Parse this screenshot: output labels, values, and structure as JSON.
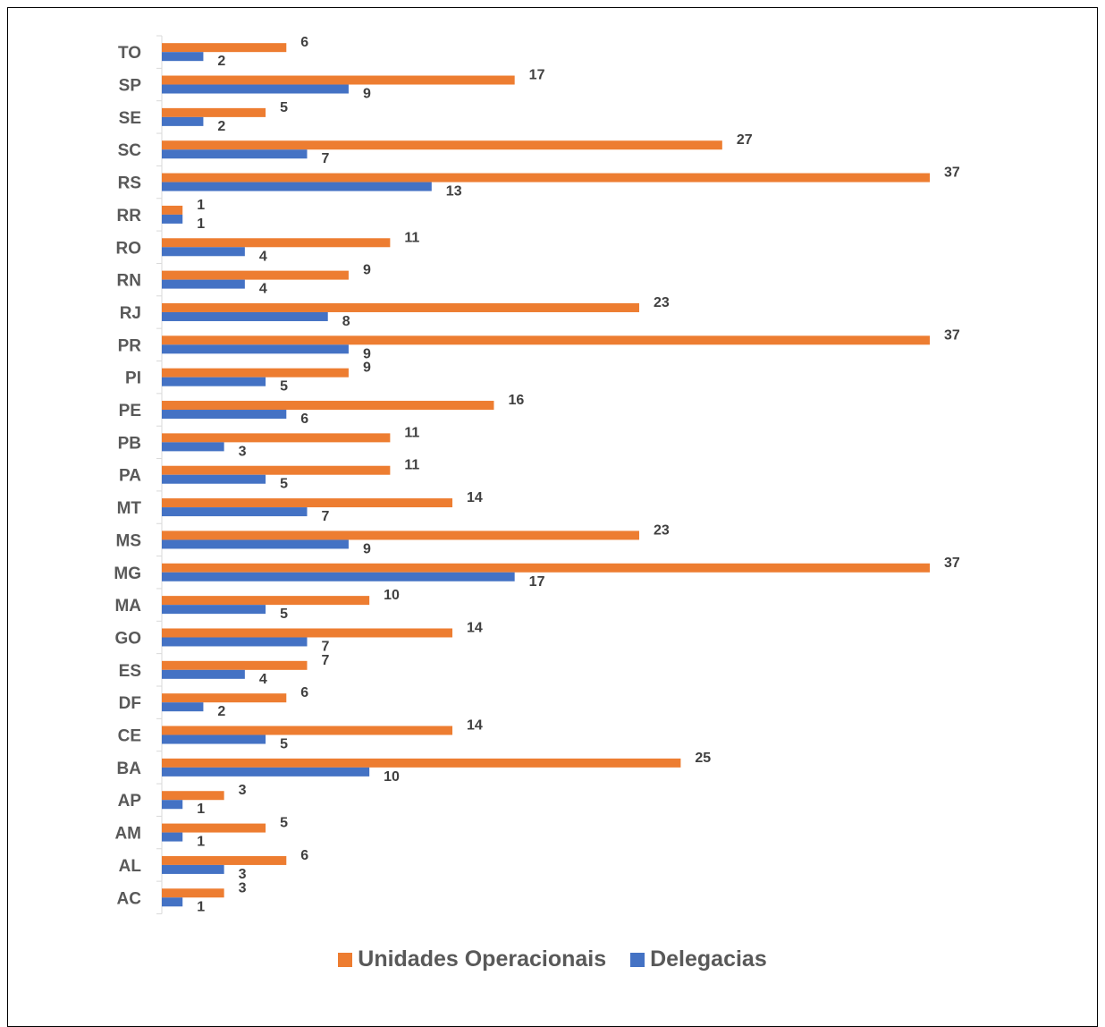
{
  "chart_data": {
    "type": "bar",
    "orientation": "horizontal",
    "categories": [
      "TO",
      "SP",
      "SE",
      "SC",
      "RS",
      "RR",
      "RO",
      "RN",
      "RJ",
      "PR",
      "PI",
      "PE",
      "PB",
      "PA",
      "MT",
      "MS",
      "MG",
      "MA",
      "GO",
      "ES",
      "DF",
      "CE",
      "BA",
      "AP",
      "AM",
      "AL",
      "AC"
    ],
    "series": [
      {
        "name": "Unidades Operacionais",
        "color": "#ED7D31",
        "values": [
          6,
          17,
          5,
          27,
          37,
          1,
          11,
          9,
          23,
          37,
          9,
          16,
          11,
          11,
          14,
          23,
          37,
          10,
          14,
          7,
          6,
          14,
          25,
          3,
          5,
          6,
          3
        ]
      },
      {
        "name": "Delegacias",
        "color": "#4472C4",
        "values": [
          2,
          9,
          2,
          7,
          13,
          1,
          4,
          4,
          8,
          9,
          5,
          6,
          3,
          5,
          7,
          9,
          17,
          5,
          7,
          4,
          2,
          5,
          10,
          1,
          1,
          3,
          1
        ]
      }
    ],
    "xlim": [
      0,
      37
    ],
    "data_labels": true,
    "grid": false,
    "legend_position": "bottom"
  }
}
